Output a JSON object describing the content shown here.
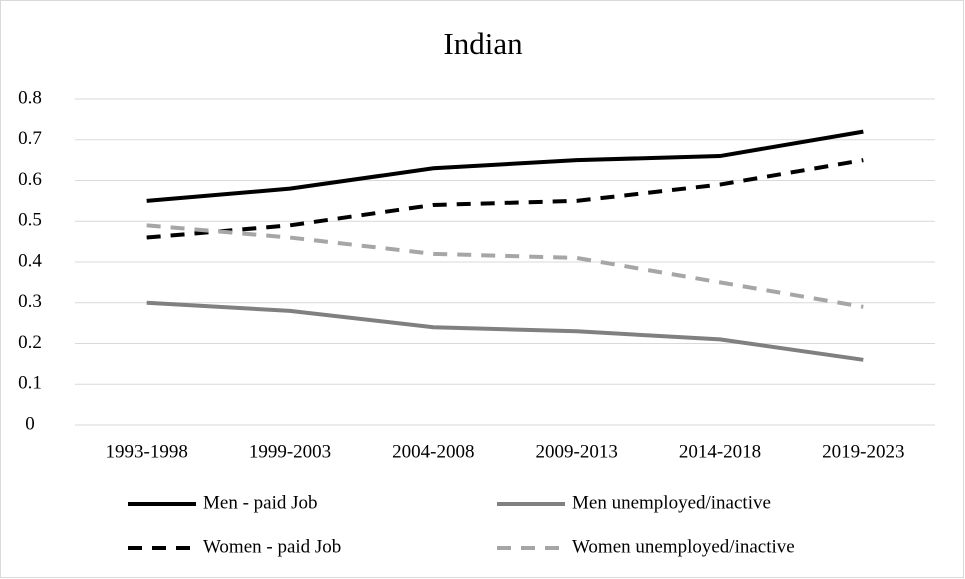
{
  "chart_data": {
    "type": "line",
    "title": "Indian",
    "categories": [
      "1993-1998",
      "1999-2003",
      "2004-2008",
      "2009-2013",
      "2014-2018",
      "2019-2023"
    ],
    "series": [
      {
        "name": "Men - paid Job",
        "color": "#000000",
        "dash": false,
        "values": [
          0.55,
          0.58,
          0.63,
          0.65,
          0.66,
          0.72
        ]
      },
      {
        "name": "Men unemployed/inactive",
        "color": "#808080",
        "dash": false,
        "values": [
          0.3,
          0.28,
          0.24,
          0.23,
          0.21,
          0.16
        ]
      },
      {
        "name": "Women - paid Job",
        "color": "#000000",
        "dash": true,
        "values": [
          0.46,
          0.49,
          0.54,
          0.55,
          0.59,
          0.65
        ]
      },
      {
        "name": "Women unemployed/inactive",
        "color": "#a6a6a6",
        "dash": true,
        "values": [
          0.49,
          0.46,
          0.42,
          0.41,
          0.35,
          0.29
        ]
      }
    ],
    "ylim": [
      0,
      0.8
    ],
    "yticks": [
      0,
      0.1,
      0.2,
      0.3,
      0.4,
      0.5,
      0.6,
      0.7,
      0.8
    ],
    "grid": true,
    "legend": "bottom"
  }
}
